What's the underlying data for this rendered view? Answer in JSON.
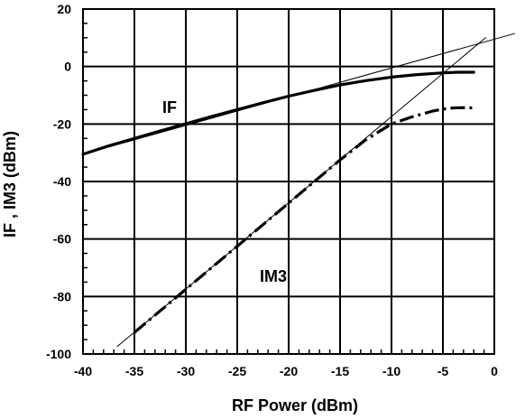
{
  "chart_data": {
    "type": "line",
    "title": "",
    "xlabel": "RF Power (dBm)",
    "ylabel": "IF , IM3 (dBm)",
    "xlim": [
      -40,
      0
    ],
    "ylim": [
      -100,
      20
    ],
    "x_ticks": [
      -40,
      -35,
      -30,
      -25,
      -20,
      -15,
      -10,
      -5,
      0
    ],
    "y_ticks": [
      -100,
      -80,
      -60,
      -40,
      -20,
      0,
      20
    ],
    "grid": true,
    "legend": "none",
    "series": [
      {
        "name": "IF",
        "style": "solid",
        "x": [
          -40,
          -37.5,
          -35,
          -32.5,
          -30,
          -27.5,
          -25,
          -22.5,
          -20,
          -17.5,
          -15,
          -12.5,
          -10,
          -7.5,
          -5,
          -3.5,
          -2
        ],
        "y": [
          -30.5,
          -27.6,
          -25,
          -22.4,
          -19.9,
          -17.4,
          -15,
          -12.6,
          -10.3,
          -8.3,
          -6.4,
          -4.9,
          -3.7,
          -2.8,
          -2.2,
          -2.0,
          -2.0
        ]
      },
      {
        "name": "IM3",
        "style": "dashed",
        "x": [
          -35,
          -32.5,
          -30,
          -27.5,
          -25,
          -22.5,
          -20,
          -17.5,
          -15,
          -12.5,
          -10,
          -8,
          -6,
          -5,
          -4,
          -3,
          -2
        ],
        "y": [
          -92.5,
          -85,
          -77.5,
          -70,
          -62.5,
          -55,
          -47.5,
          -40,
          -32.5,
          -25.5,
          -20,
          -17.5,
          -15.5,
          -14.8,
          -14.4,
          -14.3,
          -14.4
        ]
      }
    ],
    "extrapolation_lines": [
      {
        "series": "IF",
        "slope": 1,
        "x": [
          -40,
          2
        ],
        "y": [
          -30.5,
          11.5
        ]
      },
      {
        "series": "IM3",
        "slope": 3,
        "x": [
          -36.7,
          -0.8
        ],
        "y": [
          -97.5,
          10.2
        ]
      }
    ]
  }
}
